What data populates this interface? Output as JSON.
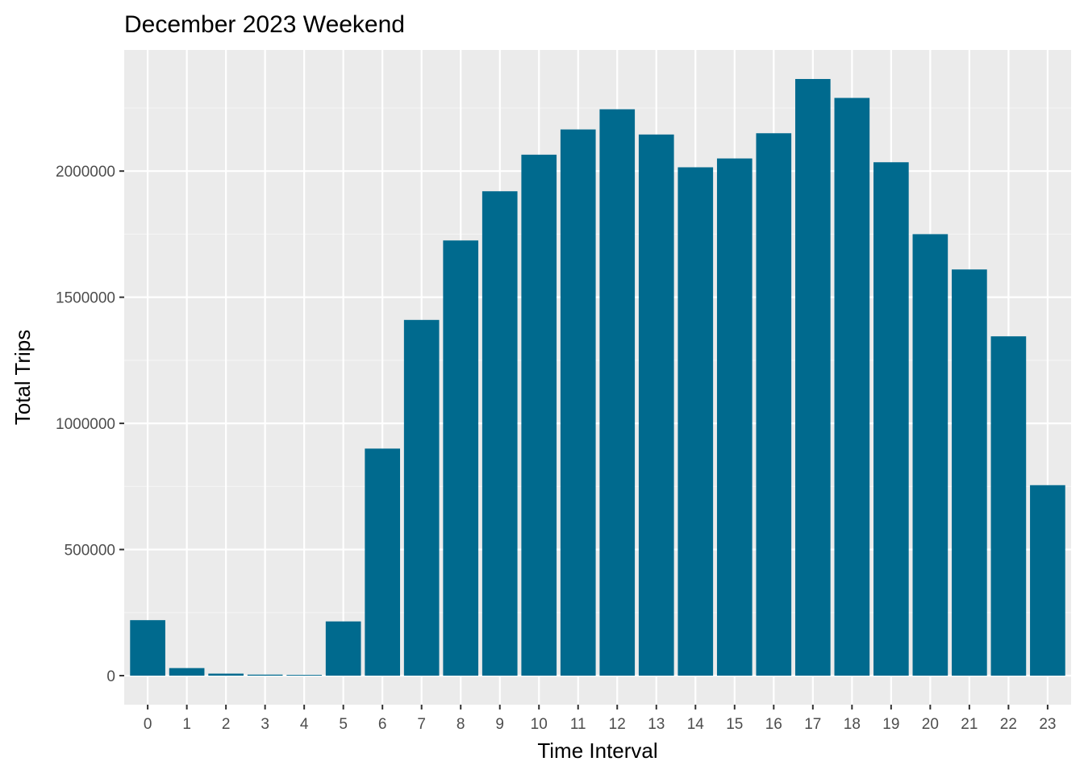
{
  "chart_data": {
    "type": "bar",
    "title": "December 2023 Weekend",
    "xlabel": "Time Interval",
    "ylabel": "Total Trips",
    "categories": [
      "0",
      "1",
      "2",
      "3",
      "4",
      "5",
      "6",
      "7",
      "8",
      "9",
      "10",
      "11",
      "12",
      "13",
      "14",
      "15",
      "16",
      "17",
      "18",
      "19",
      "20",
      "21",
      "22",
      "23"
    ],
    "values": [
      220000,
      30000,
      8000,
      4000,
      3000,
      215000,
      900000,
      1410000,
      1725000,
      1920000,
      2065000,
      2165000,
      2245000,
      2145000,
      2015000,
      2050000,
      2150000,
      2365000,
      2290000,
      2035000,
      1750000,
      1610000,
      1345000,
      755000
    ],
    "yticks": [
      0,
      500000,
      1000000,
      1500000,
      2000000
    ],
    "ytick_labels": [
      "0",
      "500000",
      "1000000",
      "1500000",
      "2000000"
    ],
    "ylim": [
      -115000,
      2480000
    ],
    "grid": true,
    "legend": "none",
    "colors": {
      "bar": "#006A8E",
      "panel_background": "#EBEBEB",
      "grid_major": "#FFFFFF",
      "grid_minor": "#F4F4F4"
    }
  }
}
